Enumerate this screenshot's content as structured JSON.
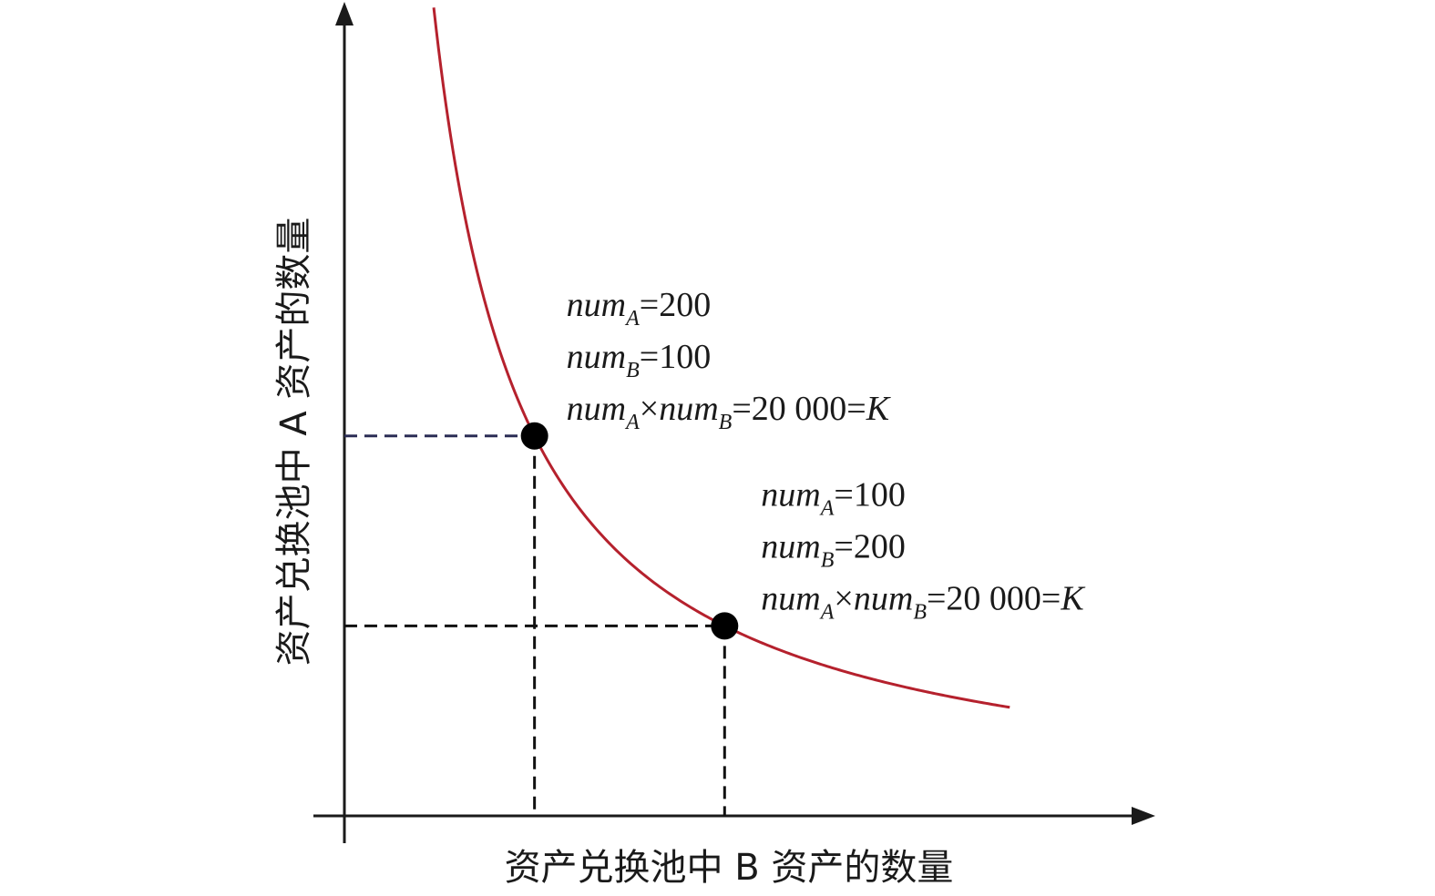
{
  "chart_data": {
    "type": "line",
    "xlabel": "资产兑换池中 B 资产的数量",
    "ylabel": "资产兑换池中 A 资产的数量",
    "xlim": [
      0,
      370
    ],
    "ylim": [
      0,
      360
    ],
    "K": 20000,
    "grid": false,
    "curve": {
      "relation": "num_A × num_B = K",
      "x_range": [
        47,
        350
      ],
      "color": "#b5212d"
    },
    "points": [
      {
        "x": 100,
        "y": 200,
        "guide_color_h": "#2b2d55",
        "guide_color_v": "#111111",
        "annotation": [
          {
            "var": "num",
            "sub": "A",
            "rest": "=200"
          },
          {
            "var": "num",
            "sub": "B",
            "rest": "=100"
          },
          {
            "var": "num",
            "sub": "A",
            "mid": "×",
            "var2": "num",
            "sub2": "B",
            "rest": "=20 000=",
            "tail": "K"
          }
        ]
      },
      {
        "x": 200,
        "y": 100,
        "guide_color_h": "#111111",
        "guide_color_v": "#111111",
        "annotation": [
          {
            "var": "num",
            "sub": "A",
            "rest": "=100"
          },
          {
            "var": "num",
            "sub": "B",
            "rest": "=200"
          },
          {
            "var": "num",
            "sub": "A",
            "mid": "×",
            "var2": "num",
            "sub2": "B",
            "rest": "=20 000=",
            "tail": "K"
          }
        ]
      }
    ]
  }
}
